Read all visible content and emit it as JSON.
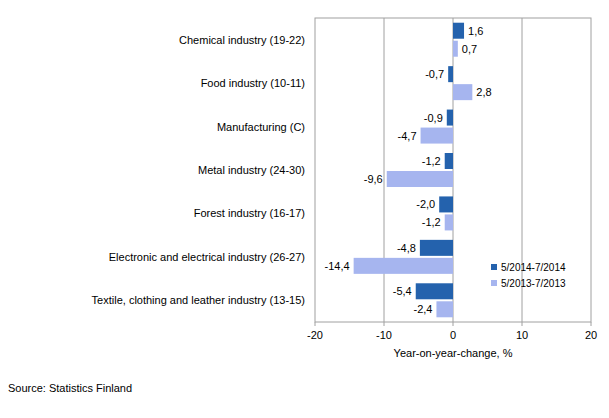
{
  "chart_data": {
    "type": "bar",
    "orientation": "horizontal",
    "categories": [
      "Chemical industry (19-22)",
      "Food industry (10-11)",
      "Manufacturing (C)",
      "Metal industry (24-30)",
      "Forest industry (16-17)",
      "Electronic and electrical industry (26-27)",
      "Textile, clothing and leather industry (13-15)"
    ],
    "series": [
      {
        "name": "5/2014-7/2014",
        "color": "#2462ad",
        "values": [
          1.6,
          -0.7,
          -0.9,
          -1.2,
          -2.0,
          -4.8,
          -5.4
        ],
        "value_labels": [
          "1,6",
          "-0,7",
          "-0,9",
          "-1,2",
          "-2,0",
          "-4,8",
          "-5,4"
        ]
      },
      {
        "name": "5/2013-7/2013",
        "color": "#a6b5ef",
        "values": [
          0.7,
          2.8,
          -4.7,
          -9.6,
          -1.2,
          -14.4,
          -2.4
        ],
        "value_labels": [
          "0,7",
          "2,8",
          "-4,7",
          "-9,6",
          "-1,2",
          "-14,4",
          "-2,4"
        ]
      }
    ],
    "x_label": "Year-on-year-change, %",
    "xlim": [
      -20,
      20
    ],
    "xticks": [
      -20,
      -10,
      0,
      10,
      20
    ],
    "grid": true,
    "legend": "lower right",
    "data_labels": true,
    "annotations": [
      "Source: Statistics Finland"
    ]
  }
}
